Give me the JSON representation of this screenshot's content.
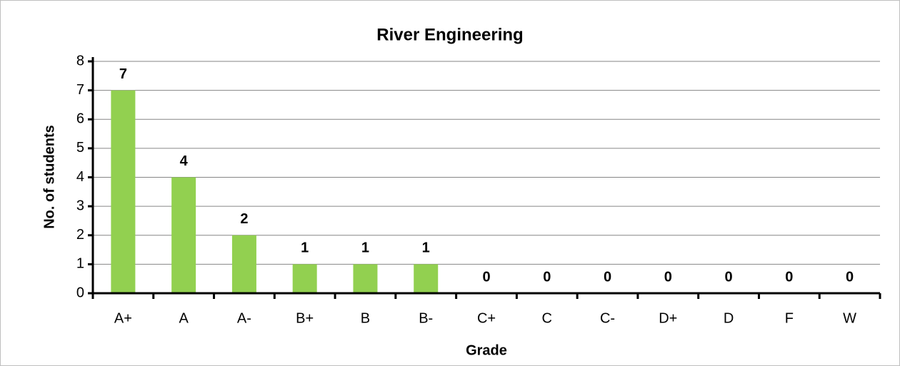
{
  "chart_data": {
    "type": "bar",
    "title": "River Engineering",
    "x_label": "Grade",
    "y_label": "No. of students",
    "categories": [
      "A+",
      "A",
      "A-",
      "B+",
      "B",
      "B-",
      "C+",
      "C",
      "C-",
      "D+",
      "D",
      "F",
      "W"
    ],
    "values": [
      7,
      4,
      2,
      1,
      1,
      1,
      0,
      0,
      0,
      0,
      0,
      0,
      0
    ],
    "color": "#92d050",
    "ylim": [
      0,
      8
    ],
    "yticks": [
      0,
      1,
      2,
      3,
      4,
      5,
      6,
      7,
      8
    ],
    "grid": true
  }
}
